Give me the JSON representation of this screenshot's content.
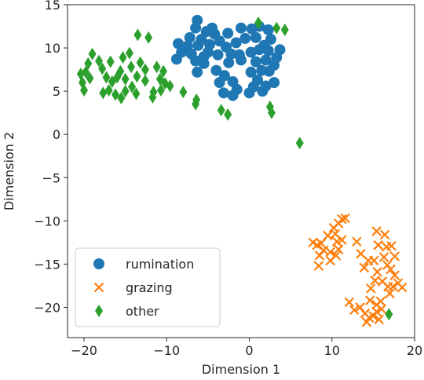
{
  "chart_data": {
    "type": "scatter",
    "title": "",
    "xlabel": "Dimension 1",
    "ylabel": "Dimension 2",
    "xlim": [
      -22,
      20
    ],
    "ylim": [
      -23.5,
      15
    ],
    "xticks": [
      -20,
      -10,
      0,
      10,
      20
    ],
    "xtick_labels": [
      "−20",
      "−10",
      "0",
      "10",
      "20"
    ],
    "yticks": [
      -20,
      -15,
      -10,
      -5,
      0,
      5,
      10,
      15
    ],
    "ytick_labels": [
      "−20",
      "−15",
      "−10",
      "−5",
      "0",
      "5",
      "10",
      "15"
    ],
    "grid": false,
    "legend_position": "lower-left",
    "series": [
      {
        "name": "rumination",
        "marker": "circle",
        "color": "#1f77b4",
        "points": [
          [
            -6.3,
            13.2
          ],
          [
            -6.5,
            12.3
          ],
          [
            -5.2,
            11.9
          ],
          [
            -4.2,
            11.6
          ],
          [
            -2.6,
            11.7
          ],
          [
            -7.2,
            11.2
          ],
          [
            -5.8,
            11.0
          ],
          [
            -3.6,
            10.8
          ],
          [
            -8.6,
            10.5
          ],
          [
            -7.5,
            10.2
          ],
          [
            -6.2,
            10.3
          ],
          [
            -4.8,
            10.4
          ],
          [
            -2.8,
            10.1
          ],
          [
            -1.6,
            10.6
          ],
          [
            -0.5,
            11.1
          ],
          [
            0.8,
            11.2
          ],
          [
            2.6,
            11.0
          ],
          [
            1.8,
            10.3
          ],
          [
            -8.2,
            9.5
          ],
          [
            -7.0,
            9.3
          ],
          [
            -5.0,
            9.5
          ],
          [
            -3.8,
            9.2
          ],
          [
            -2.2,
            9.3
          ],
          [
            0.2,
            9.5
          ],
          [
            1.2,
            9.8
          ],
          [
            2.3,
            9.7
          ],
          [
            3.7,
            9.8
          ],
          [
            -8.8,
            8.7
          ],
          [
            -6.5,
            8.5
          ],
          [
            -5.5,
            8.2
          ],
          [
            -2.5,
            8.3
          ],
          [
            -1.0,
            8.6
          ],
          [
            0.8,
            8.4
          ],
          [
            2.0,
            8.6
          ],
          [
            3.3,
            8.9
          ],
          [
            -6.3,
            7.2
          ],
          [
            -4.0,
            7.4
          ],
          [
            -3.0,
            6.8
          ],
          [
            0.2,
            7.2
          ],
          [
            1.5,
            7.4
          ],
          [
            2.4,
            7.3
          ],
          [
            -3.6,
            6.0
          ],
          [
            -2.0,
            6.1
          ],
          [
            -1.5,
            5.2
          ],
          [
            0.5,
            5.5
          ],
          [
            1.0,
            6.3
          ],
          [
            2.0,
            5.6
          ],
          [
            3.0,
            6.0
          ],
          [
            -3.1,
            4.8
          ],
          [
            0.0,
            4.8
          ],
          [
            1.6,
            5.0
          ],
          [
            -1.0,
            12.3
          ],
          [
            0.3,
            12.2
          ],
          [
            1.2,
            12.5
          ],
          [
            2.3,
            12.1
          ],
          [
            -4.5,
            12.3
          ],
          [
            -5.5,
            9.0
          ],
          [
            -1.2,
            9.2
          ],
          [
            3.0,
            8.0
          ],
          [
            -2.0,
            4.5
          ]
        ]
      },
      {
        "name": "grazing",
        "marker": "x",
        "color": "#ff7f0e",
        "points": [
          [
            11.2,
            -9.8
          ],
          [
            10.8,
            -10.3
          ],
          [
            11.6,
            -9.7
          ],
          [
            10.2,
            -10.8
          ],
          [
            10.4,
            -11.5
          ],
          [
            9.5,
            -11.7
          ],
          [
            10.6,
            -12.4
          ],
          [
            11.2,
            -12.2
          ],
          [
            8.7,
            -12.6
          ],
          [
            8.2,
            -12.8
          ],
          [
            7.7,
            -12.5
          ],
          [
            9.0,
            -13.4
          ],
          [
            8.5,
            -14.0
          ],
          [
            9.8,
            -13.6
          ],
          [
            10.5,
            -14.0
          ],
          [
            9.8,
            -14.6
          ],
          [
            10.8,
            -13.3
          ],
          [
            8.4,
            -15.2
          ],
          [
            13.0,
            -12.4
          ],
          [
            13.5,
            -13.8
          ],
          [
            14.4,
            -14.6
          ],
          [
            13.9,
            -15.4
          ],
          [
            15.1,
            -14.6
          ],
          [
            15.5,
            -15.9
          ],
          [
            15.2,
            -16.9
          ],
          [
            14.7,
            -17.8
          ],
          [
            15.4,
            -11.2
          ],
          [
            15.6,
            -12.8
          ],
          [
            16.4,
            -11.6
          ],
          [
            16.6,
            -13.0
          ],
          [
            17.2,
            -12.9
          ],
          [
            17.6,
            -14.1
          ],
          [
            16.3,
            -14.2
          ],
          [
            16.7,
            -15.1
          ],
          [
            17.1,
            -15.6
          ],
          [
            17.6,
            -16.3
          ],
          [
            18.0,
            -17.2
          ],
          [
            18.5,
            -17.7
          ],
          [
            16.8,
            -17.6
          ],
          [
            16.1,
            -17.0
          ],
          [
            17.0,
            -18.4
          ],
          [
            12.1,
            -19.4
          ],
          [
            12.7,
            -20.3
          ],
          [
            13.4,
            -20.0
          ],
          [
            14.0,
            -20.7
          ],
          [
            14.5,
            -21.2
          ],
          [
            15.0,
            -21.0
          ],
          [
            15.4,
            -20.5
          ],
          [
            15.7,
            -21.4
          ],
          [
            16.0,
            -20.2
          ],
          [
            15.4,
            -19.7
          ],
          [
            14.6,
            -19.2
          ],
          [
            15.9,
            -19.3
          ],
          [
            14.2,
            -21.7
          ],
          [
            17.4,
            -17.6
          ]
        ]
      },
      {
        "name": "other",
        "marker": "diamond",
        "color": "#2ca02c",
        "points": [
          [
            -13.5,
            11.5
          ],
          [
            -12.2,
            11.2
          ],
          [
            -19.0,
            9.3
          ],
          [
            -18.2,
            8.5
          ],
          [
            -19.5,
            8.2
          ],
          [
            -17.8,
            7.6
          ],
          [
            -16.8,
            8.4
          ],
          [
            -15.3,
            8.9
          ],
          [
            -14.5,
            9.4
          ],
          [
            -15.6,
            7.3
          ],
          [
            -14.3,
            7.8
          ],
          [
            -13.2,
            8.3
          ],
          [
            -12.6,
            7.5
          ],
          [
            -11.2,
            7.8
          ],
          [
            -10.4,
            7.3
          ],
          [
            -19.8,
            7.2
          ],
          [
            -20.4,
            7.0
          ],
          [
            -19.3,
            6.5
          ],
          [
            -20.2,
            6.0
          ],
          [
            -17.3,
            6.6
          ],
          [
            -16.6,
            6.1
          ],
          [
            -16.0,
            6.6
          ],
          [
            -15.0,
            6.4
          ],
          [
            -13.6,
            6.7
          ],
          [
            -12.6,
            6.2
          ],
          [
            -10.8,
            6.4
          ],
          [
            -10.2,
            5.9
          ],
          [
            -20.0,
            5.1
          ],
          [
            -17.7,
            4.8
          ],
          [
            -17.0,
            5.1
          ],
          [
            -16.2,
            4.6
          ],
          [
            -15.0,
            5.0
          ],
          [
            -14.2,
            5.5
          ],
          [
            -13.7,
            4.7
          ],
          [
            -11.6,
            4.9
          ],
          [
            -10.7,
            5.1
          ],
          [
            -9.6,
            5.6
          ],
          [
            -8.0,
            4.9
          ],
          [
            -15.5,
            4.2
          ],
          [
            -11.7,
            4.3
          ],
          [
            -6.4,
            4.0
          ],
          [
            -6.5,
            3.5
          ],
          [
            -3.4,
            2.8
          ],
          [
            -2.6,
            2.3
          ],
          [
            2.5,
            3.2
          ],
          [
            2.7,
            2.5
          ],
          [
            1.1,
            12.9
          ],
          [
            3.3,
            12.3
          ],
          [
            4.3,
            12.1
          ],
          [
            6.1,
            -1.0
          ],
          [
            16.9,
            -20.8
          ]
        ]
      }
    ]
  }
}
